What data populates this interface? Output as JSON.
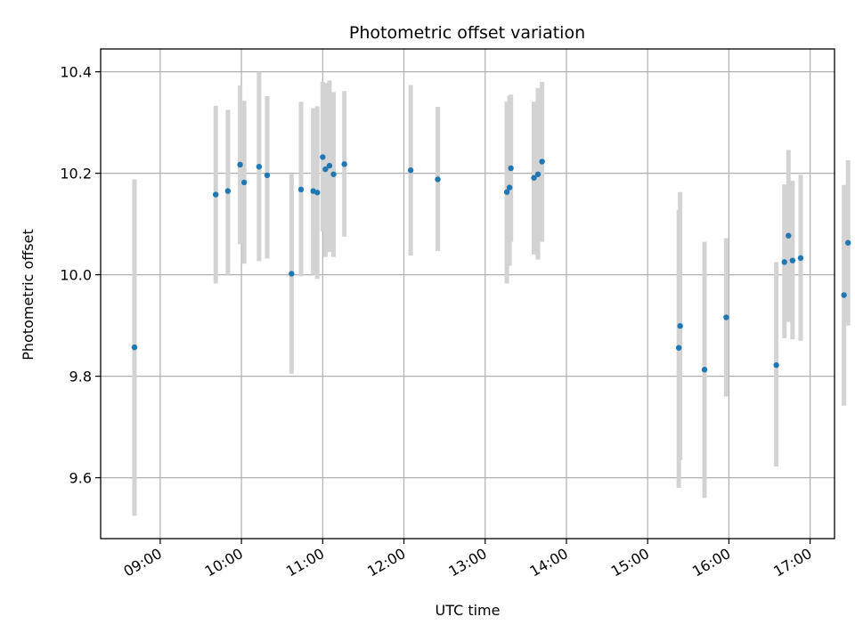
{
  "chart_data": {
    "type": "scatter",
    "title": "Photometric offset variation",
    "xlabel": "UTC time",
    "ylabel": "Photometric offset",
    "xlim": [
      "08:16",
      "17:18"
    ],
    "ylim": [
      9.48,
      10.445
    ],
    "x_ticks": [
      "09:00",
      "10:00",
      "11:00",
      "12:00",
      "13:00",
      "14:00",
      "15:00",
      "16:00",
      "17:00"
    ],
    "y_ticks": [
      9.6,
      9.8,
      10.0,
      10.2,
      10.4
    ],
    "y_tick_labels": [
      "9.6",
      "9.8",
      "10.0",
      "10.2",
      "10.4"
    ],
    "grid": true,
    "marker_color": "#1f77b4",
    "errorbar_color": "#d3d3d3",
    "points": [
      {
        "time": "08:41",
        "y": 9.857,
        "ylow": 9.525,
        "yhigh": 10.188
      },
      {
        "time": "09:41",
        "y": 10.158,
        "ylow": 9.983,
        "yhigh": 10.333
      },
      {
        "time": "09:50",
        "y": 10.165,
        "ylow": 10.0,
        "yhigh": 10.325
      },
      {
        "time": "09:59",
        "y": 10.217,
        "ylow": 10.06,
        "yhigh": 10.373
      },
      {
        "time": "10:02",
        "y": 10.182,
        "ylow": 10.022,
        "yhigh": 10.343
      },
      {
        "time": "10:13",
        "y": 10.213,
        "ylow": 10.027,
        "yhigh": 10.4
      },
      {
        "time": "10:19",
        "y": 10.196,
        "ylow": 10.032,
        "yhigh": 10.352
      },
      {
        "time": "10:37",
        "y": 10.002,
        "ylow": 9.805,
        "yhigh": 10.198
      },
      {
        "time": "10:44",
        "y": 10.168,
        "ylow": 9.997,
        "yhigh": 10.341
      },
      {
        "time": "10:53",
        "y": 10.165,
        "ylow": 10.0,
        "yhigh": 10.328
      },
      {
        "time": "10:56",
        "y": 10.162,
        "ylow": 9.992,
        "yhigh": 10.332
      },
      {
        "time": "11:00",
        "y": 10.232,
        "ylow": 10.085,
        "yhigh": 10.38
      },
      {
        "time": "11:02",
        "y": 10.208,
        "ylow": 10.035,
        "yhigh": 10.378
      },
      {
        "time": "11:05",
        "y": 10.215,
        "ylow": 10.045,
        "yhigh": 10.383
      },
      {
        "time": "11:08",
        "y": 10.198,
        "ylow": 10.035,
        "yhigh": 10.36
      },
      {
        "time": "11:16",
        "y": 10.218,
        "ylow": 10.075,
        "yhigh": 10.362
      },
      {
        "time": "12:05",
        "y": 10.206,
        "ylow": 10.038,
        "yhigh": 10.374
      },
      {
        "time": "12:25",
        "y": 10.188,
        "ylow": 10.047,
        "yhigh": 10.331
      },
      {
        "time": "13:16",
        "y": 10.163,
        "ylow": 9.983,
        "yhigh": 10.341
      },
      {
        "time": "13:18",
        "y": 10.172,
        "ylow": 10.018,
        "yhigh": 10.353
      },
      {
        "time": "13:19",
        "y": 10.21,
        "ylow": 10.065,
        "yhigh": 10.355
      },
      {
        "time": "13:36",
        "y": 10.191,
        "ylow": 10.04,
        "yhigh": 10.341
      },
      {
        "time": "13:39",
        "y": 10.198,
        "ylow": 10.03,
        "yhigh": 10.368
      },
      {
        "time": "13:42",
        "y": 10.223,
        "ylow": 10.065,
        "yhigh": 10.38
      },
      {
        "time": "15:23",
        "y": 9.856,
        "ylow": 9.58,
        "yhigh": 10.128
      },
      {
        "time": "15:24",
        "y": 9.899,
        "ylow": 9.635,
        "yhigh": 10.163
      },
      {
        "time": "15:42",
        "y": 9.813,
        "ylow": 9.56,
        "yhigh": 10.065
      },
      {
        "time": "15:58",
        "y": 9.916,
        "ylow": 9.76,
        "yhigh": 10.072
      },
      {
        "time": "16:35",
        "y": 9.822,
        "ylow": 9.622,
        "yhigh": 10.025
      },
      {
        "time": "16:41",
        "y": 10.025,
        "ylow": 9.875,
        "yhigh": 10.178
      },
      {
        "time": "16:44",
        "y": 10.077,
        "ylow": 9.907,
        "yhigh": 10.246
      },
      {
        "time": "16:47",
        "y": 10.028,
        "ylow": 9.873,
        "yhigh": 10.185
      },
      {
        "time": "16:53",
        "y": 10.033,
        "ylow": 9.87,
        "yhigh": 10.197
      },
      {
        "time": "17:25",
        "y": 9.96,
        "ylow": 9.742,
        "yhigh": 10.177
      },
      {
        "time": "17:28",
        "y": 10.063,
        "ylow": 9.9,
        "yhigh": 10.226
      }
    ]
  }
}
